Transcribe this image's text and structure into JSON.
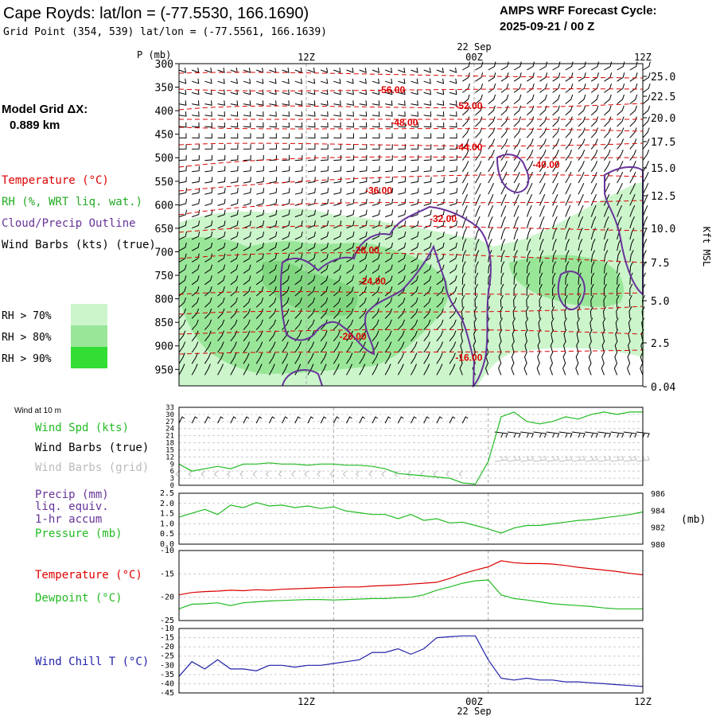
{
  "header": {
    "title": "Cape Royds:  lat/lon = (-77.5530, 166.1690)",
    "grid_point": "Grid Point (354, 539) lat/lon = (-77.5561, 166.1639)",
    "cycle_label": "AMPS WRF Forecast Cycle:",
    "cycle_value": "2025-09-21 / 00  Z"
  },
  "left_panel": {
    "model_grid_label": "Model Grid ΔX:",
    "model_grid_value": "0.889 km",
    "legend_temperature": "Temperature (°C)",
    "legend_rh": "RH (%, WRT liq. wat.)",
    "legend_cloud": "Cloud/Precip Outline",
    "legend_wind": "Wind Barbs (kts) (true)",
    "rh_levels": [
      {
        "label": "RH > 70%",
        "color": "#ccf5cc"
      },
      {
        "label": "RH > 80%",
        "color": "#99e699"
      },
      {
        "label": "RH > 90%",
        "color": "#33dd33"
      }
    ]
  },
  "colors": {
    "temperature": "#dd0000",
    "rh_label": "#22aa22",
    "cloud": "#663399",
    "wind_speed": "#22bb22",
    "wind_grid": "#bbbbbb",
    "precip": "#663399",
    "wind_chill": "#2222aa",
    "grid_line": "#aaaaaa"
  },
  "time_axis": {
    "top_date_label": "22 Sep",
    "bottom_date_label": "22 Sep",
    "ticks": [
      "12Z",
      "00Z",
      "12Z"
    ]
  },
  "chart_data": [
    {
      "type": "heatmap",
      "name": "sounding",
      "y_axis_label": "P (mb)",
      "pressure_ticks": [
        300,
        350,
        400,
        450,
        500,
        550,
        600,
        650,
        700,
        750,
        800,
        850,
        900,
        950
      ],
      "height_axis_label": "Kft MSL",
      "height_ticks": [
        "25.0",
        "22.5",
        "20.0",
        "17.5",
        "15.0",
        "12.5",
        "10.0",
        "7.5",
        "5.0",
        "2.5",
        "0.04"
      ],
      "isotherm_labels": [
        {
          "label": "-56.00",
          "hour": 16.5,
          "p": 356
        },
        {
          "label": "-52.00",
          "hour": 22.5,
          "p": 390
        },
        {
          "label": "-48.00",
          "hour": 17.5,
          "p": 425
        },
        {
          "label": "-44.00",
          "hour": 22.5,
          "p": 478
        },
        {
          "label": "-40.00",
          "hour": 28.5,
          "p": 515
        },
        {
          "label": "-36.00",
          "hour": 15.5,
          "p": 570
        },
        {
          "label": "-32.00",
          "hour": 20.5,
          "p": 630
        },
        {
          "label": "-28.00",
          "hour": 14.5,
          "p": 697
        },
        {
          "label": "-24.00",
          "hour": 15.0,
          "p": 763
        },
        {
          "label": "-20.00",
          "hour": 13.5,
          "p": 880
        },
        {
          "label": "-16.00",
          "hour": 22.5,
          "p": 925
        }
      ]
    },
    {
      "type": "line",
      "name": "wind_10m",
      "title": "Wind at 10 m",
      "label_speed": "Wind Spd (kts)",
      "label_barbs_true": "Wind Barbs (true)",
      "label_barbs_grid": "Wind Barbs (grid)",
      "ylim": [
        0,
        33
      ],
      "y_ticks": [
        0,
        3,
        6,
        9,
        12,
        15,
        18,
        21,
        24,
        27,
        30,
        33
      ],
      "x": [
        0,
        1,
        2,
        3,
        4,
        5,
        6,
        7,
        8,
        9,
        10,
        11,
        12,
        13,
        14,
        15,
        16,
        17,
        18,
        19,
        20,
        21,
        22,
        23,
        24,
        25,
        26,
        27,
        28,
        29,
        30,
        31,
        32,
        33,
        34,
        35,
        36
      ],
      "values": [
        9,
        6,
        7,
        8,
        7,
        9,
        9,
        9.5,
        9,
        9,
        8.5,
        9,
        9,
        8.5,
        8.5,
        8,
        7,
        5,
        4.5,
        4,
        3.5,
        3,
        1,
        0.5,
        10,
        29,
        31,
        27,
        26,
        27,
        29,
        28,
        30,
        31,
        30,
        31,
        31
      ]
    },
    {
      "type": "line",
      "name": "precip_pressure",
      "label_precip": "Precip (mm)",
      "label_precip2": "liq. equiv.",
      "label_precip3": "1-hr accum",
      "label_pressure": "Pressure (mb)",
      "left_ylim": [
        0,
        2.5
      ],
      "left_ticks": [
        "0.0",
        "0.5",
        "1.0",
        "1.5",
        "2.0",
        "2.5"
      ],
      "right_ylim": [
        980,
        986
      ],
      "right_ticks": [
        "980",
        "982",
        "984",
        "986"
      ],
      "right_unit": "(mb)",
      "x": [
        0,
        2,
        3,
        4,
        5,
        6,
        7,
        8,
        9,
        10,
        11,
        12,
        13,
        14,
        15,
        16,
        17,
        18,
        19,
        20,
        21,
        22,
        23,
        24,
        25,
        26,
        27,
        28,
        29,
        30,
        31,
        32,
        33,
        34,
        35,
        36
      ],
      "values": [
        983.2,
        984.1,
        983.5,
        984.6,
        984.3,
        984.9,
        984.5,
        984.6,
        984.3,
        984.5,
        984.2,
        984.4,
        983.9,
        983.7,
        983.5,
        983.5,
        983.0,
        983.5,
        982.8,
        983.0,
        982.5,
        982.6,
        982.2,
        981.8,
        981.3,
        981.9,
        982.2,
        982.2,
        982.4,
        982.6,
        982.8,
        982.9,
        983.1,
        983.3,
        983.5,
        983.8
      ]
    },
    {
      "type": "line",
      "name": "temperature",
      "label_temp": "Temperature (°C)",
      "label_dew": "Dewpoint (°C)",
      "ylim": [
        -25,
        -10
      ],
      "y_ticks": [
        -25,
        -20,
        -15,
        -10
      ],
      "series": [
        {
          "name": "Temperature",
          "color": "#dd0000",
          "x": [
            0,
            1,
            2,
            3,
            4,
            5,
            6,
            7,
            8,
            9,
            10,
            11,
            12,
            13,
            14,
            15,
            16,
            17,
            18,
            19,
            20,
            21,
            22,
            23,
            24,
            25,
            26,
            27,
            28,
            29,
            30,
            31,
            32,
            33,
            34,
            35,
            36
          ],
          "values": [
            -19.5,
            -19,
            -18.8,
            -18.7,
            -18.5,
            -18.6,
            -18.4,
            -18.5,
            -18.3,
            -18.2,
            -18.1,
            -18.0,
            -17.9,
            -17.8,
            -17.8,
            -17.6,
            -17.5,
            -17.4,
            -17.2,
            -17.0,
            -16.8,
            -16.0,
            -15.0,
            -14.2,
            -13.5,
            -12.2,
            -12.6,
            -12.8,
            -12.8,
            -12.9,
            -13.2,
            -13.6,
            -13.9,
            -14.2,
            -14.5,
            -14.9,
            -15.2
          ]
        },
        {
          "name": "Dewpoint",
          "color": "#22bb22",
          "x": [
            0,
            1,
            2,
            3,
            4,
            5,
            6,
            7,
            8,
            9,
            10,
            11,
            12,
            13,
            14,
            15,
            16,
            17,
            18,
            19,
            20,
            21,
            22,
            23,
            24,
            25,
            26,
            27,
            28,
            29,
            30,
            31,
            32,
            33,
            34,
            35,
            36
          ],
          "values": [
            -22.5,
            -21.5,
            -21.4,
            -21.2,
            -21.8,
            -21.2,
            -21.0,
            -20.8,
            -20.7,
            -20.6,
            -20.5,
            -20.5,
            -20.6,
            -20.5,
            -20.4,
            -20.3,
            -20.3,
            -20.1,
            -20.0,
            -19.5,
            -18.5,
            -17.8,
            -17.0,
            -16.5,
            -16.3,
            -19.5,
            -20.3,
            -20.6,
            -21.0,
            -21.4,
            -21.6,
            -21.8,
            -22.0,
            -22.3,
            -22.5,
            -22.5,
            -22.5
          ]
        }
      ]
    },
    {
      "type": "line",
      "name": "wind_chill",
      "label": "Wind Chill T (°C)",
      "ylim": [
        -45,
        -10
      ],
      "y_ticks": [
        -45,
        -40,
        -35,
        -30,
        -25,
        -20,
        -15,
        -10
      ],
      "x": [
        0,
        1,
        2,
        3,
        4,
        5,
        6,
        7,
        8,
        9,
        10,
        11,
        12,
        13,
        14,
        15,
        16,
        17,
        18,
        19,
        20,
        21,
        22,
        23,
        24,
        25,
        26,
        27,
        28,
        29,
        30,
        31,
        32,
        33,
        34,
        35,
        36
      ],
      "values": [
        -36,
        -28,
        -32,
        -27,
        -32,
        -32,
        -33,
        -30,
        -30,
        -31,
        -30,
        -30,
        -29,
        -28,
        -27,
        -23,
        -23,
        -21,
        -24,
        -21,
        -15,
        -14.5,
        -14,
        -14,
        -27,
        -37,
        -38,
        -37,
        -38,
        -38,
        -39,
        -39,
        -39.5,
        -40,
        -40.5,
        -41,
        -41.5
      ]
    }
  ]
}
